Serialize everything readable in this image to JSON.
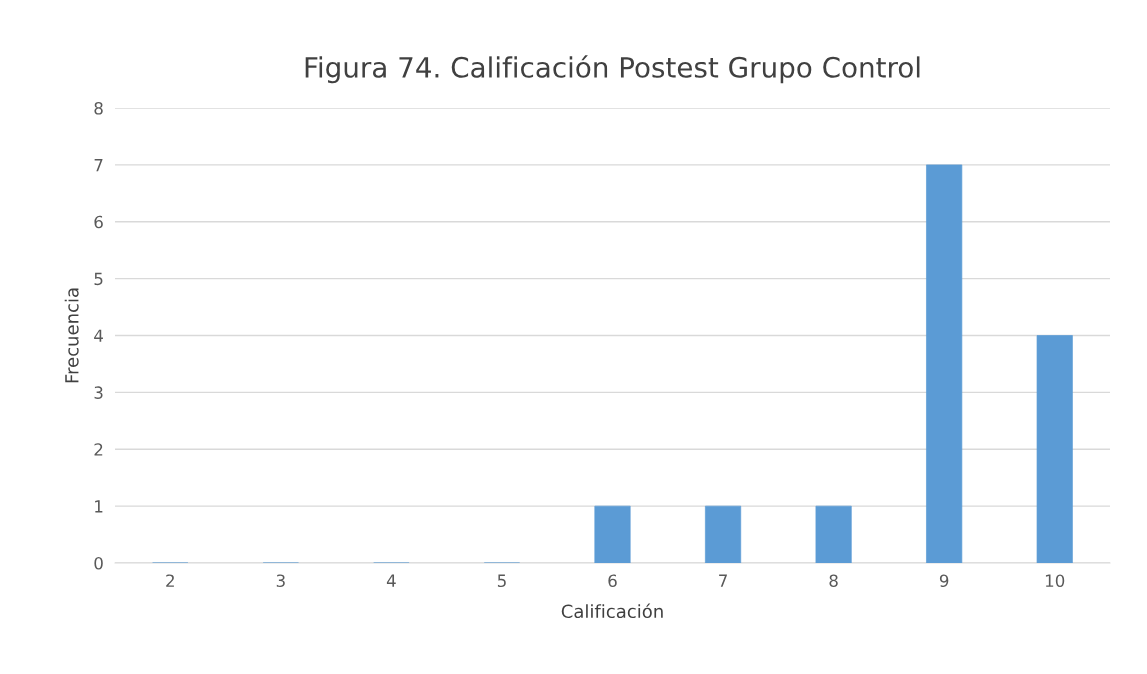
{
  "chart_data": {
    "type": "bar",
    "title": "Figura 74. Calificación Postest Grupo Control",
    "xlabel": "Calificación",
    "ylabel": "Frecuencia",
    "categories": [
      "2",
      "3",
      "4",
      "5",
      "6",
      "7",
      "8",
      "9",
      "10"
    ],
    "values": [
      0,
      0,
      0,
      0,
      1,
      1,
      1,
      7,
      4
    ],
    "color": "#5b9bd5",
    "ylim": [
      0,
      8
    ],
    "yticks": [
      0,
      1,
      2,
      3,
      4,
      5,
      6,
      7,
      8
    ],
    "grid": "y",
    "legend": false
  }
}
